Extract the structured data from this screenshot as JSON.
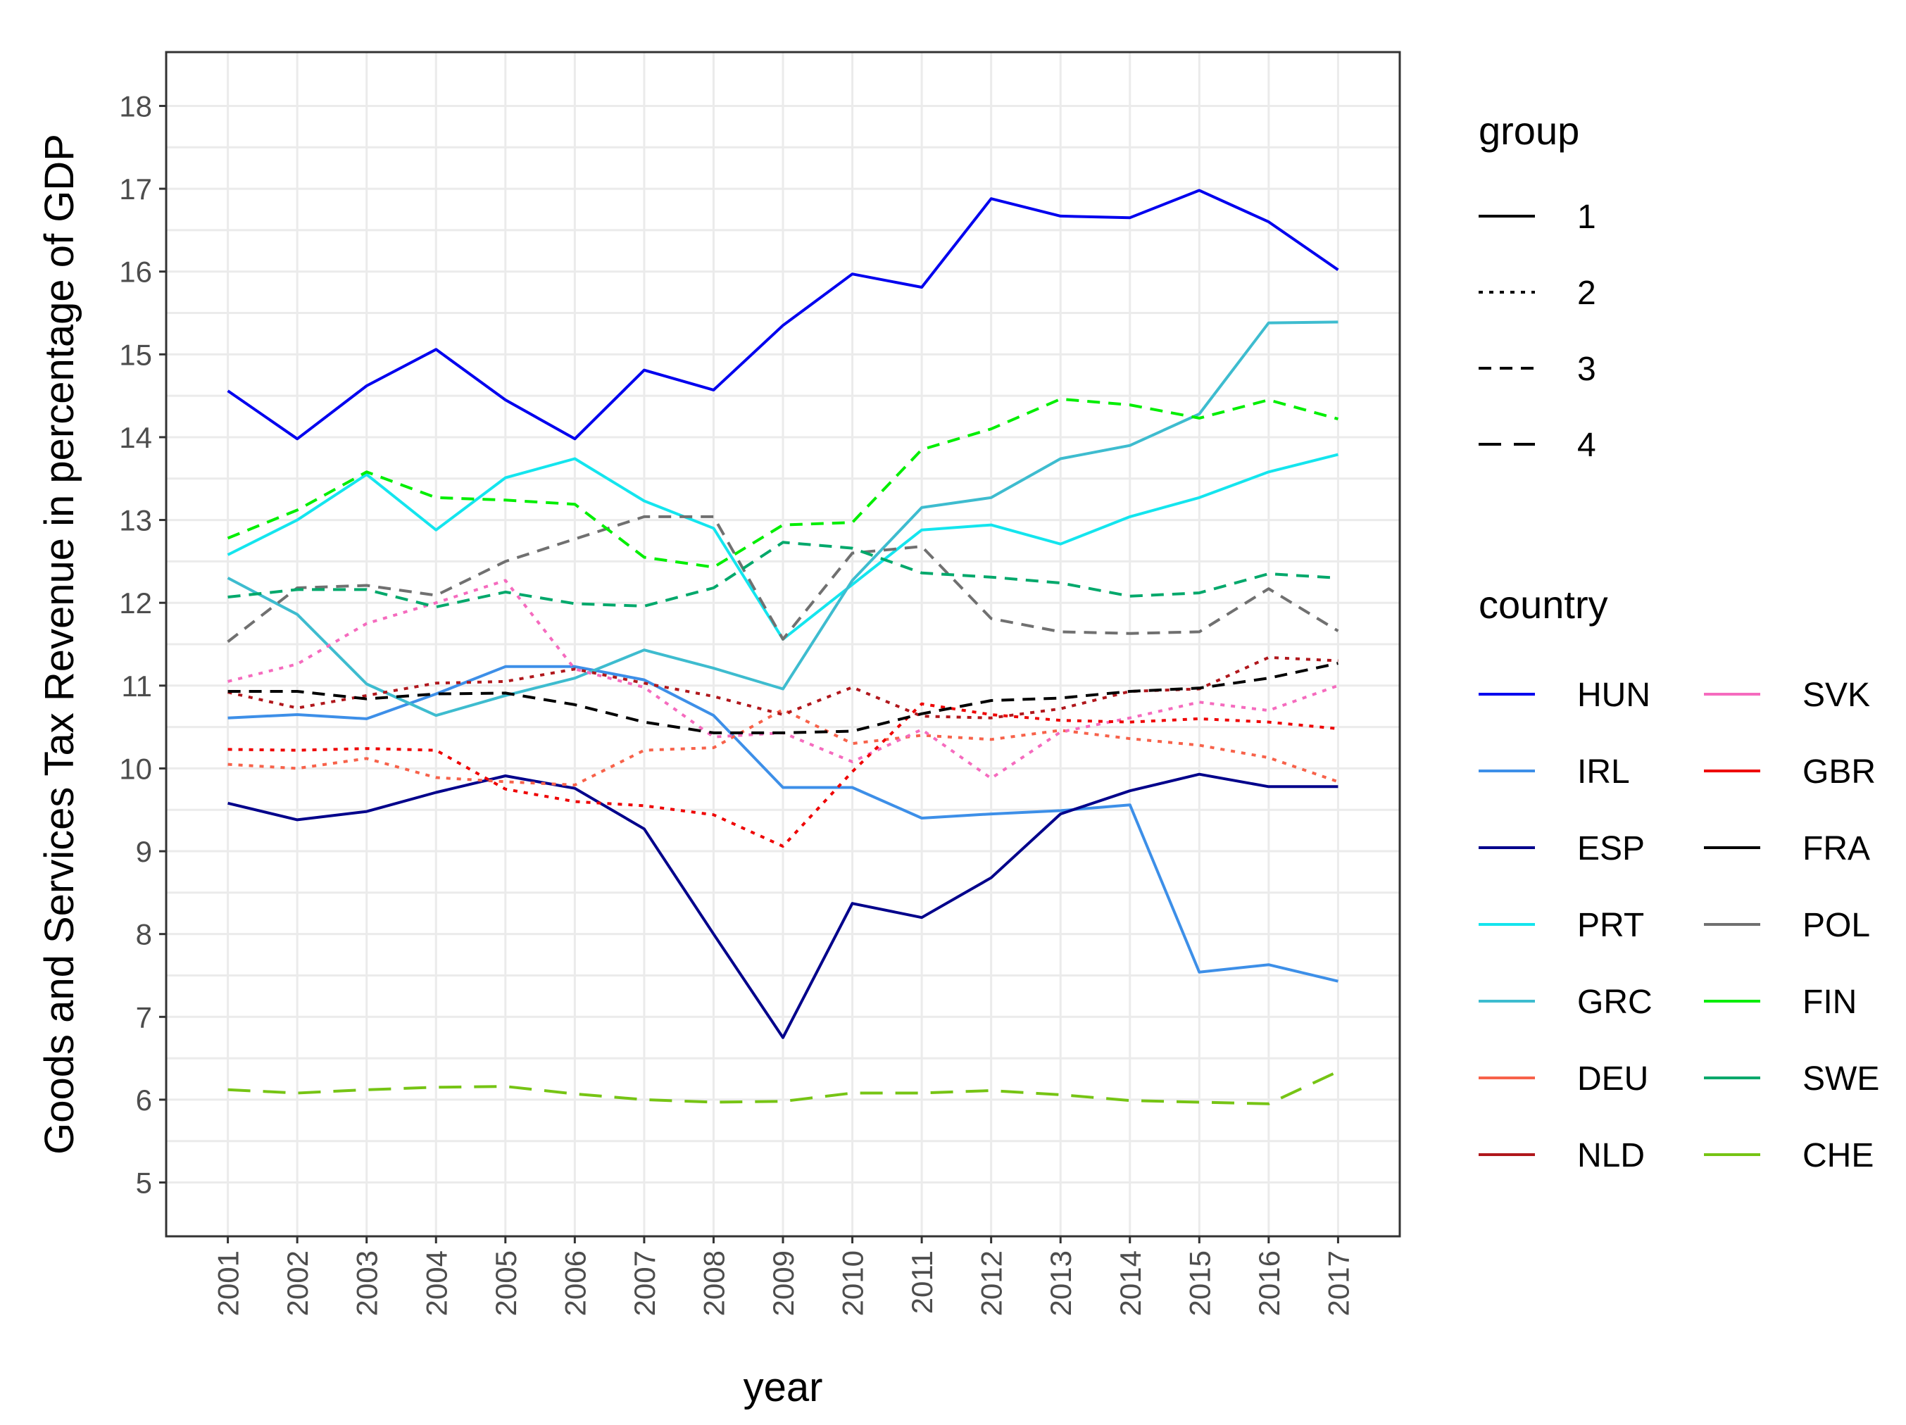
{
  "chart_data": {
    "type": "line",
    "title": "",
    "xlabel": "year",
    "ylabel": "Goods and Services Tax Revenue in percentage of GDP",
    "x": [
      2001,
      2002,
      2003,
      2004,
      2005,
      2006,
      2007,
      2008,
      2009,
      2010,
      2011,
      2012,
      2013,
      2014,
      2015,
      2016,
      2017
    ],
    "x_tick_labels": [
      "2001",
      "2002",
      "2003",
      "2004",
      "2005",
      "2006",
      "2007",
      "2008",
      "2009",
      "2010",
      "2011",
      "2012",
      "2013",
      "2014",
      "2015",
      "2016",
      "2017"
    ],
    "y_ticks": [
      5,
      6,
      7,
      8,
      9,
      10,
      11,
      12,
      13,
      14,
      15,
      16,
      17,
      18
    ],
    "y_tick_labels": [
      "5",
      "6",
      "7",
      "8",
      "9",
      "10",
      "11",
      "12",
      "13",
      "14",
      "15",
      "16",
      "17",
      "18"
    ],
    "ylim": [
      4.35,
      18.65
    ],
    "grid": true,
    "legend_position": "right",
    "group_legend": {
      "title": "group",
      "entries": [
        {
          "label": "1",
          "dash": "solid"
        },
        {
          "label": "2",
          "dash": "dotted"
        },
        {
          "label": "3",
          "dash": "dashed"
        },
        {
          "label": "4",
          "dash": "longdash"
        }
      ]
    },
    "country_legend": {
      "title": "country"
    },
    "series": [
      {
        "name": "HUN",
        "group": 1,
        "color": "#0000ee",
        "values": [
          14.56,
          13.98,
          14.62,
          15.06,
          14.45,
          13.98,
          14.81,
          14.57,
          15.35,
          15.97,
          15.81,
          16.88,
          16.67,
          16.65,
          16.98,
          16.6,
          16.02
        ]
      },
      {
        "name": "IRL",
        "group": 1,
        "color": "#3d8fe8",
        "values": [
          10.61,
          10.65,
          10.6,
          10.9,
          11.23,
          11.23,
          11.07,
          10.64,
          9.77,
          9.77,
          9.4,
          9.45,
          9.49,
          9.56,
          7.54,
          7.63,
          7.43
        ]
      },
      {
        "name": "ESP",
        "group": 1,
        "color": "#00008b",
        "values": [
          9.58,
          9.38,
          9.48,
          9.71,
          9.91,
          9.76,
          9.27,
          8.0,
          6.75,
          8.37,
          8.2,
          8.68,
          9.45,
          9.73,
          9.93,
          9.78,
          9.78
        ]
      },
      {
        "name": "PRT",
        "group": 1,
        "color": "#14e5ee",
        "values": [
          12.58,
          13.0,
          13.55,
          12.88,
          13.51,
          13.74,
          13.23,
          12.9,
          11.56,
          12.22,
          12.88,
          12.94,
          12.71,
          13.04,
          13.27,
          13.58,
          13.79
        ]
      },
      {
        "name": "GRC",
        "group": 1,
        "color": "#3ebccf",
        "values": [
          12.3,
          11.86,
          11.02,
          10.64,
          10.88,
          11.09,
          11.43,
          11.21,
          10.96,
          12.27,
          13.15,
          13.27,
          13.74,
          13.9,
          14.28,
          15.38,
          15.39
        ]
      },
      {
        "name": "DEU",
        "group": 2,
        "color": "#f7624a",
        "values": [
          10.05,
          10.0,
          10.12,
          9.89,
          9.84,
          9.8,
          10.22,
          10.25,
          10.71,
          10.3,
          10.4,
          10.35,
          10.46,
          10.36,
          10.28,
          10.13,
          9.84
        ]
      },
      {
        "name": "NLD",
        "group": 2,
        "color": "#b0171c",
        "values": [
          10.92,
          10.73,
          10.88,
          11.03,
          11.05,
          11.2,
          11.03,
          10.87,
          10.65,
          10.98,
          10.63,
          10.61,
          10.72,
          10.93,
          10.96,
          11.34,
          11.3
        ]
      },
      {
        "name": "SVK",
        "group": 2,
        "color": "#f56bbe",
        "values": [
          11.05,
          11.26,
          11.75,
          12.0,
          12.27,
          11.2,
          10.98,
          10.38,
          10.43,
          10.08,
          10.47,
          9.88,
          10.44,
          10.61,
          10.8,
          10.7,
          11.0
        ]
      },
      {
        "name": "GBR",
        "group": 2,
        "color": "#ee0000",
        "values": [
          10.23,
          10.22,
          10.24,
          10.22,
          9.75,
          9.6,
          9.55,
          9.44,
          9.06,
          9.96,
          10.78,
          10.65,
          10.58,
          10.56,
          10.6,
          10.56,
          10.48
        ]
      },
      {
        "name": "FRA",
        "group": 3,
        "color": "#000000",
        "values": [
          10.93,
          10.93,
          10.84,
          10.9,
          10.91,
          10.77,
          10.56,
          10.43,
          10.43,
          10.45,
          10.66,
          10.82,
          10.85,
          10.93,
          10.97,
          11.09,
          11.27
        ]
      },
      {
        "name": "POL",
        "group": 3,
        "color": "#707070",
        "values": [
          11.53,
          12.18,
          12.21,
          12.09,
          12.5,
          12.77,
          13.04,
          13.04,
          11.56,
          12.6,
          12.68,
          11.81,
          11.65,
          11.63,
          11.65,
          12.17,
          11.66
        ]
      },
      {
        "name": "FIN",
        "group": 3,
        "color": "#00ee00",
        "values": [
          12.78,
          13.12,
          13.58,
          13.27,
          13.24,
          13.19,
          12.55,
          12.43,
          12.94,
          12.97,
          13.85,
          14.1,
          14.46,
          14.39,
          14.23,
          14.45,
          14.22
        ]
      },
      {
        "name": "SWE",
        "group": 3,
        "color": "#00a86b",
        "values": [
          12.07,
          12.16,
          12.16,
          11.95,
          12.13,
          11.99,
          11.96,
          12.18,
          12.73,
          12.66,
          12.36,
          12.31,
          12.24,
          12.08,
          12.12,
          12.35,
          12.3
        ]
      },
      {
        "name": "CHE",
        "group": 4,
        "color": "#76c414",
        "values": [
          6.12,
          6.08,
          6.12,
          6.15,
          6.16,
          6.07,
          6.0,
          5.97,
          5.98,
          6.08,
          6.08,
          6.11,
          6.06,
          5.99,
          5.97,
          5.95,
          6.34
        ]
      }
    ]
  }
}
